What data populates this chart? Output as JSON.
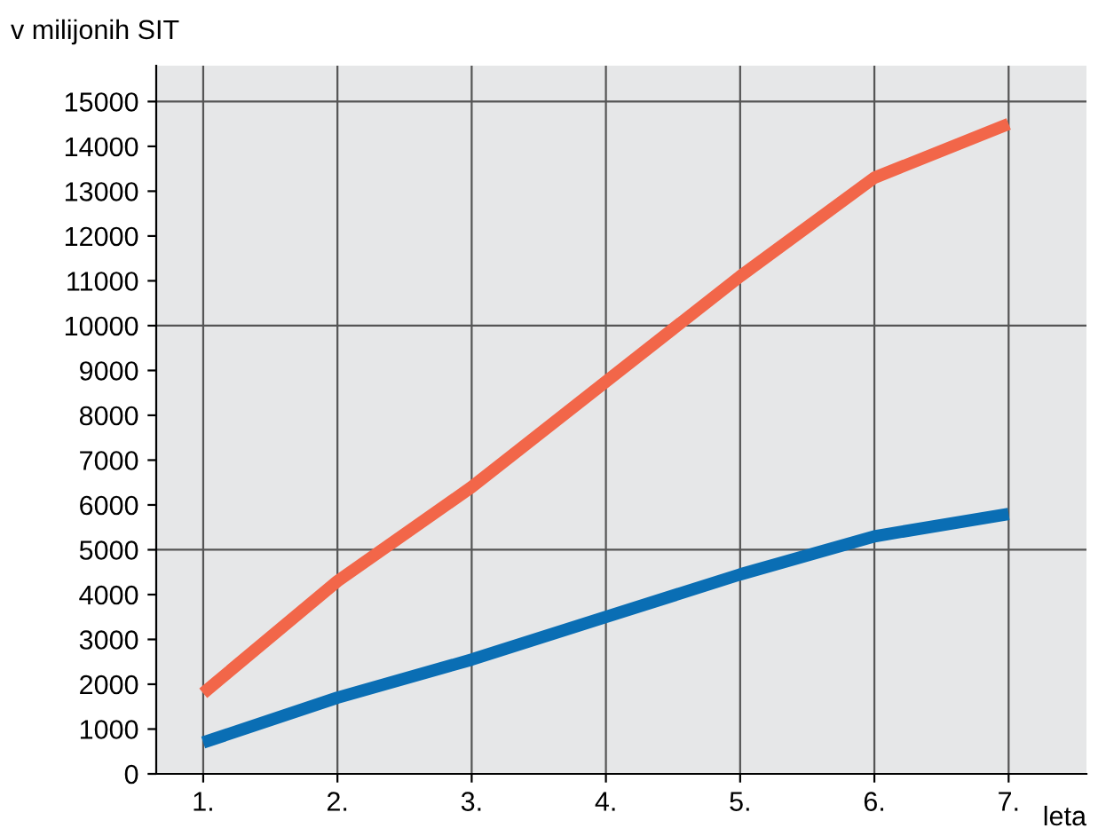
{
  "chart_data": {
    "type": "line",
    "ylabel": "v milijonih SIT",
    "xlabel": "leta",
    "categories": [
      "1.",
      "2.",
      "3.",
      "4.",
      "5.",
      "6.",
      "7."
    ],
    "series": [
      {
        "color": "#f26649",
        "values": [
          1800,
          4300,
          6400,
          8750,
          11100,
          13300,
          14500
        ]
      },
      {
        "color": "#0a6eb4",
        "values": [
          700,
          1700,
          2550,
          3500,
          4450,
          5300,
          5800
        ]
      }
    ],
    "ylim": [
      0,
      15800
    ],
    "yticks": [
      0,
      1000,
      2000,
      3000,
      4000,
      5000,
      6000,
      7000,
      8000,
      9000,
      10000,
      11000,
      12000,
      13000,
      14000,
      15000
    ],
    "ref_lines": [
      {
        "axis": "y",
        "value": 5000,
        "color": "#555555"
      },
      {
        "axis": "y",
        "value": 10000,
        "color": "#555555"
      },
      {
        "axis": "y",
        "value": 15000,
        "color": "#555555"
      }
    ],
    "grid": "x",
    "legend": false,
    "marker": "none",
    "line_style": "solid"
  }
}
